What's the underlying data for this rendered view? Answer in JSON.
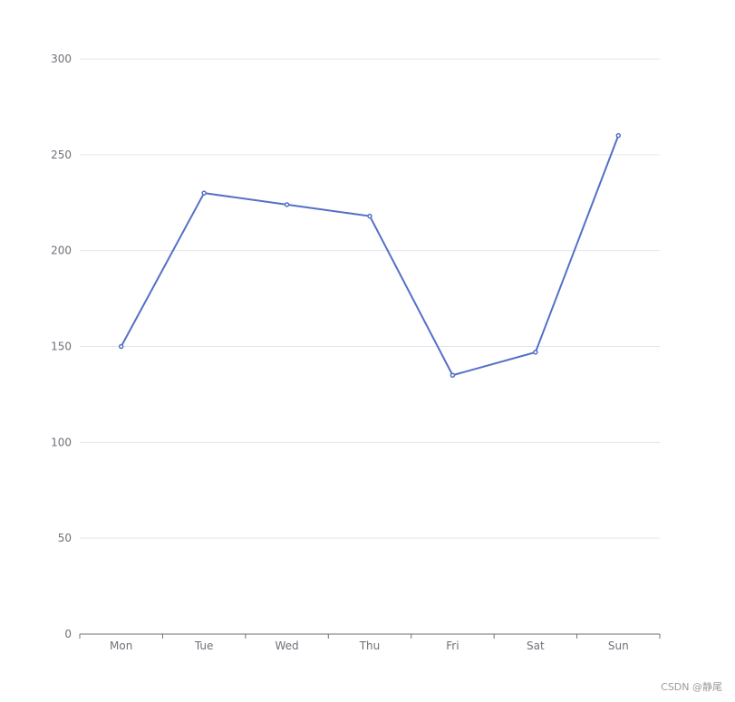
{
  "chart_data": {
    "type": "line",
    "title": "",
    "xlabel": "",
    "ylabel": "",
    "categories": [
      "Mon",
      "Tue",
      "Wed",
      "Thu",
      "Fri",
      "Sat",
      "Sun"
    ],
    "series": [
      {
        "values": [
          150,
          230,
          224,
          218,
          135,
          147,
          260
        ]
      }
    ],
    "ylim": [
      0,
      300
    ],
    "y_ticks": [
      0,
      50,
      100,
      150,
      200,
      250,
      300
    ],
    "y_tick_labels": [
      "0",
      "50",
      "100",
      "150",
      "200",
      "250",
      "300"
    ],
    "grid": true,
    "legend": "none"
  },
  "colors": {
    "line": "#5470c6",
    "grid": "#e0e6f1",
    "axis": "#6e7079",
    "label": "#6e7079"
  },
  "watermark": "CSDN @静尾"
}
